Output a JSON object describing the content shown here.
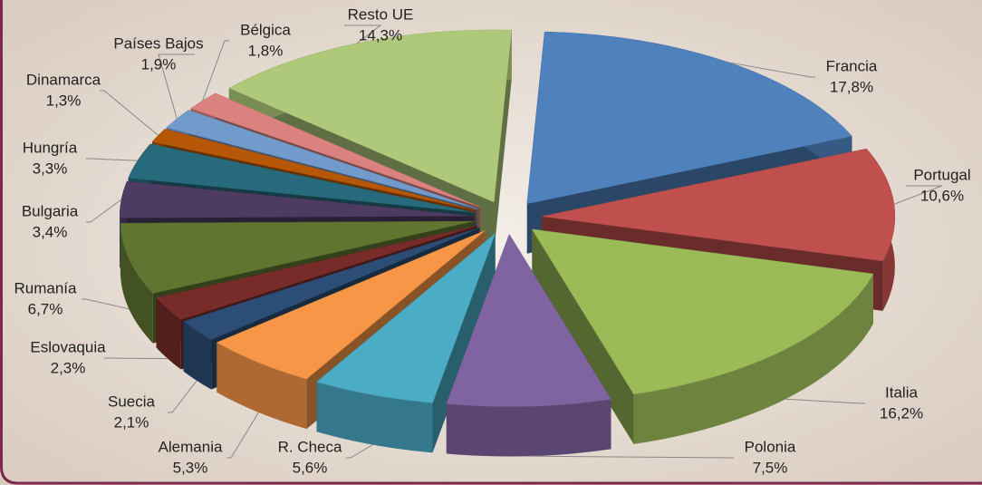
{
  "chart_data": {
    "type": "pie3d",
    "categories": [
      "Francia",
      "Portugal",
      "Italia",
      "Polonia",
      "R. Checa",
      "Alemania",
      "Suecia",
      "Eslovaquia",
      "Rumanía",
      "Bulgaria",
      "Hungría",
      "Dinamarca",
      "Países Bajos",
      "Bélgica",
      "Resto UE"
    ],
    "values": [
      17.8,
      10.6,
      16.2,
      7.5,
      5.6,
      5.3,
      2.1,
      2.3,
      6.7,
      3.4,
      3.3,
      1.3,
      1.9,
      1.8,
      14.3
    ],
    "value_labels": [
      "17,8%",
      "10,6%",
      "16,2%",
      "7,5%",
      "5,6%",
      "5,3%",
      "2,1%",
      "2,3%",
      "6,7%",
      "3,4%",
      "3,3%",
      "1,3%",
      "1,9%",
      "1,8%",
      "14,3%"
    ],
    "colors": [
      "#4f81bd",
      "#c0504d",
      "#9bbb59",
      "#8064a2",
      "#4bacc6",
      "#f79646",
      "#2c4d75",
      "#772c2a",
      "#5f7530",
      "#4d3b62",
      "#276a7c",
      "#b65708",
      "#729aca",
      "#d9827f",
      "#afc97a"
    ]
  }
}
